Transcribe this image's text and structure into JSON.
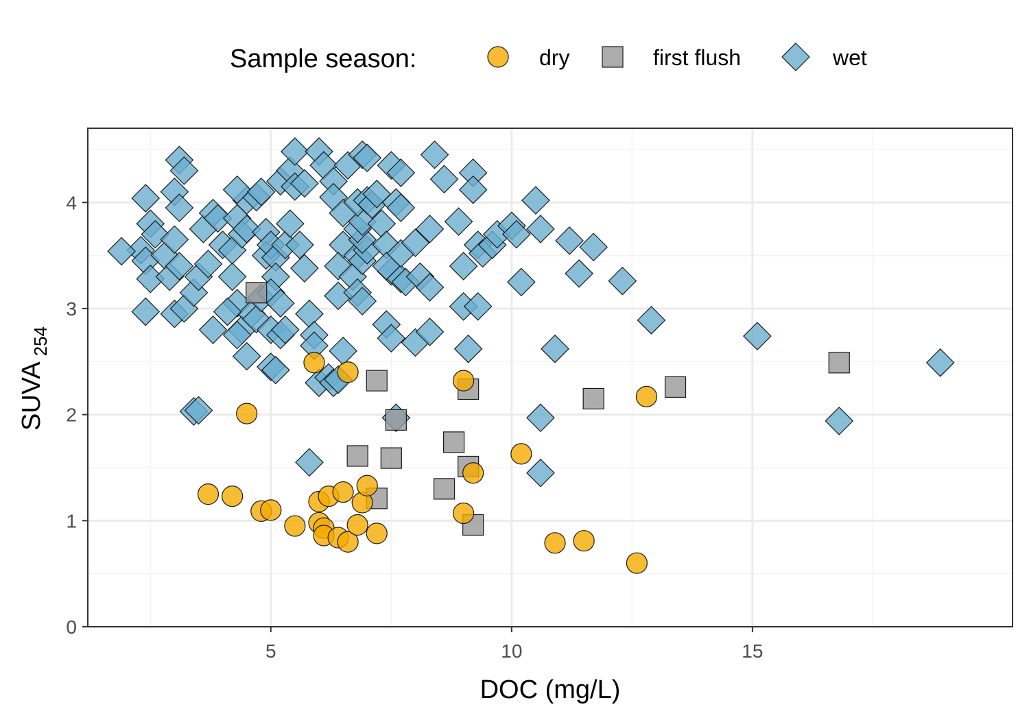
{
  "chart_data": {
    "type": "scatter",
    "title": "",
    "xlabel": "DOC (mg/L)",
    "ylabel": "SUVA",
    "ylabel_subscript": "254",
    "xlim": [
      1.2,
      20.4
    ],
    "ylim": [
      0,
      4.7
    ],
    "x_ticks": [
      5,
      10,
      15
    ],
    "x_tick_labels": [
      "5",
      "10",
      "15"
    ],
    "y_ticks": [
      0,
      1,
      2,
      3,
      4
    ],
    "y_tick_labels": [
      "0",
      "1",
      "2",
      "3",
      "4"
    ],
    "grid": true,
    "legend": {
      "title": "Sample season:",
      "position": "top",
      "entries": [
        {
          "label": "dry",
          "shape": "circle",
          "color": "#F5AB00"
        },
        {
          "label": "first flush",
          "shape": "square",
          "color": "#999999"
        },
        {
          "label": "wet",
          "shape": "diamond",
          "color": "#6BAED0"
        }
      ]
    },
    "series": [
      {
        "name": "dry",
        "shape": "circle",
        "color": "#F5AB00",
        "points": [
          [
            5.9,
            2.49
          ],
          [
            6.6,
            2.4
          ],
          [
            4.5,
            2.01
          ],
          [
            9.0,
            2.32
          ],
          [
            12.8,
            2.17
          ],
          [
            10.2,
            1.63
          ],
          [
            9.2,
            1.45
          ],
          [
            3.7,
            1.25
          ],
          [
            4.2,
            1.23
          ],
          [
            4.8,
            1.09
          ],
          [
            5.0,
            1.1
          ],
          [
            6.0,
            1.18
          ],
          [
            6.2,
            1.23
          ],
          [
            6.5,
            1.27
          ],
          [
            6.9,
            1.17
          ],
          [
            7.0,
            1.33
          ],
          [
            5.5,
            0.95
          ],
          [
            6.0,
            0.98
          ],
          [
            6.1,
            0.93
          ],
          [
            6.1,
            0.86
          ],
          [
            6.4,
            0.84
          ],
          [
            6.6,
            0.8
          ],
          [
            6.8,
            0.96
          ],
          [
            7.2,
            0.88
          ],
          [
            9.0,
            1.07
          ],
          [
            10.9,
            0.79
          ],
          [
            11.5,
            0.81
          ],
          [
            12.6,
            0.6
          ]
        ]
      },
      {
        "name": "first flush",
        "shape": "square",
        "color": "#999999",
        "points": [
          [
            7.2,
            2.32
          ],
          [
            9.1,
            2.24
          ],
          [
            11.7,
            2.15
          ],
          [
            13.4,
            2.26
          ],
          [
            16.8,
            2.49
          ],
          [
            7.6,
            1.95
          ],
          [
            6.8,
            1.61
          ],
          [
            7.5,
            1.59
          ],
          [
            8.8,
            1.74
          ],
          [
            9.1,
            1.51
          ],
          [
            8.6,
            1.3
          ],
          [
            7.2,
            1.21
          ],
          [
            9.2,
            0.96
          ],
          [
            4.7,
            3.15
          ]
        ]
      },
      {
        "name": "wet",
        "shape": "diamond",
        "color": "#6BAED0",
        "points": [
          [
            3.1,
            4.4
          ],
          [
            3.2,
            4.3
          ],
          [
            2.4,
            4.04
          ],
          [
            3.0,
            4.1
          ],
          [
            3.1,
            3.95
          ],
          [
            2.5,
            3.8
          ],
          [
            2.6,
            3.7
          ],
          [
            2.3,
            3.55
          ],
          [
            1.9,
            3.54
          ],
          [
            2.4,
            3.45
          ],
          [
            2.8,
            3.5
          ],
          [
            3.0,
            3.65
          ],
          [
            2.5,
            3.28
          ],
          [
            2.9,
            3.3
          ],
          [
            3.1,
            3.4
          ],
          [
            2.4,
            2.97
          ],
          [
            3.0,
            2.95
          ],
          [
            3.2,
            3.0
          ],
          [
            3.4,
            3.15
          ],
          [
            3.5,
            3.3
          ],
          [
            3.7,
            3.42
          ],
          [
            3.6,
            3.75
          ],
          [
            3.8,
            3.9
          ],
          [
            3.9,
            3.85
          ],
          [
            4.0,
            3.6
          ],
          [
            4.2,
            3.55
          ],
          [
            4.2,
            3.3
          ],
          [
            4.3,
            3.05
          ],
          [
            4.4,
            2.8
          ],
          [
            4.3,
            2.75
          ],
          [
            4.5,
            2.55
          ],
          [
            4.6,
            2.95
          ],
          [
            4.7,
            2.9
          ],
          [
            4.8,
            3.1
          ],
          [
            3.8,
            2.8
          ],
          [
            4.1,
            2.97
          ],
          [
            4.3,
            3.85
          ],
          [
            4.4,
            3.7
          ],
          [
            4.5,
            3.75
          ],
          [
            4.5,
            4.02
          ],
          [
            4.7,
            4.05
          ],
          [
            4.3,
            4.12
          ],
          [
            4.8,
            4.1
          ],
          [
            4.9,
            3.72
          ],
          [
            4.9,
            3.5
          ],
          [
            5.0,
            3.6
          ],
          [
            5.1,
            3.48
          ],
          [
            5.1,
            3.3
          ],
          [
            5.0,
            3.15
          ],
          [
            5.2,
            3.05
          ],
          [
            5.0,
            2.8
          ],
          [
            5.2,
            2.75
          ],
          [
            5.0,
            2.45
          ],
          [
            5.1,
            2.42
          ],
          [
            5.3,
            2.8
          ],
          [
            5.3,
            3.6
          ],
          [
            5.4,
            3.8
          ],
          [
            5.2,
            4.2
          ],
          [
            5.4,
            4.3
          ],
          [
            5.5,
            4.15
          ],
          [
            5.5,
            4.48
          ],
          [
            5.7,
            4.18
          ],
          [
            5.6,
            3.6
          ],
          [
            5.7,
            3.38
          ],
          [
            5.8,
            2.95
          ],
          [
            5.9,
            2.75
          ],
          [
            5.9,
            2.65
          ],
          [
            6.0,
            2.3
          ],
          [
            6.2,
            2.35
          ],
          [
            6.3,
            2.3
          ],
          [
            6.4,
            2.33
          ],
          [
            6.5,
            2.6
          ],
          [
            5.8,
            1.55
          ],
          [
            3.4,
            2.03
          ],
          [
            3.5,
            2.04
          ],
          [
            6.0,
            4.48
          ],
          [
            6.1,
            4.35
          ],
          [
            6.3,
            4.2
          ],
          [
            6.3,
            4.05
          ],
          [
            6.5,
            3.9
          ],
          [
            6.6,
            4.35
          ],
          [
            6.5,
            3.6
          ],
          [
            6.4,
            3.4
          ],
          [
            6.4,
            3.12
          ],
          [
            6.7,
            3.3
          ],
          [
            6.8,
            3.15
          ],
          [
            6.9,
            3.07
          ],
          [
            6.8,
            3.5
          ],
          [
            6.9,
            3.45
          ],
          [
            7.0,
            3.55
          ],
          [
            6.9,
            3.65
          ],
          [
            6.8,
            3.75
          ],
          [
            6.9,
            3.82
          ],
          [
            6.8,
            4.0
          ],
          [
            7.0,
            4.02
          ],
          [
            7.1,
            3.98
          ],
          [
            7.2,
            4.08
          ],
          [
            6.9,
            4.45
          ],
          [
            7.0,
            4.42
          ],
          [
            7.3,
            3.8
          ],
          [
            7.4,
            3.6
          ],
          [
            7.5,
            3.35
          ],
          [
            7.4,
            3.4
          ],
          [
            7.7,
            3.28
          ],
          [
            7.8,
            3.25
          ],
          [
            7.7,
            3.52
          ],
          [
            8.0,
            3.62
          ],
          [
            8.1,
            3.3
          ],
          [
            8.3,
            3.2
          ],
          [
            7.4,
            2.85
          ],
          [
            7.5,
            2.72
          ],
          [
            8.0,
            2.68
          ],
          [
            8.3,
            2.78
          ],
          [
            7.6,
            1.97
          ],
          [
            7.5,
            4.35
          ],
          [
            7.7,
            4.28
          ],
          [
            7.6,
            4.0
          ],
          [
            7.7,
            3.95
          ],
          [
            8.3,
            3.75
          ],
          [
            8.4,
            4.45
          ],
          [
            8.6,
            4.22
          ],
          [
            8.9,
            3.82
          ],
          [
            9.0,
            3.4
          ],
          [
            9.0,
            3.02
          ],
          [
            9.1,
            2.62
          ],
          [
            9.3,
            3.02
          ],
          [
            9.2,
            4.28
          ],
          [
            9.2,
            4.12
          ],
          [
            9.3,
            3.6
          ],
          [
            9.4,
            3.52
          ],
          [
            9.6,
            3.6
          ],
          [
            9.7,
            3.7
          ],
          [
            10.0,
            3.78
          ],
          [
            10.1,
            3.7
          ],
          [
            10.2,
            3.25
          ],
          [
            10.5,
            4.02
          ],
          [
            10.6,
            3.75
          ],
          [
            11.2,
            3.64
          ],
          [
            11.7,
            3.58
          ],
          [
            11.4,
            3.33
          ],
          [
            12.3,
            3.26
          ],
          [
            12.9,
            2.89
          ],
          [
            10.9,
            2.62
          ],
          [
            10.6,
            1.97
          ],
          [
            10.6,
            1.45
          ],
          [
            15.1,
            2.74
          ],
          [
            16.8,
            1.94
          ],
          [
            18.9,
            2.49
          ]
        ]
      }
    ]
  }
}
